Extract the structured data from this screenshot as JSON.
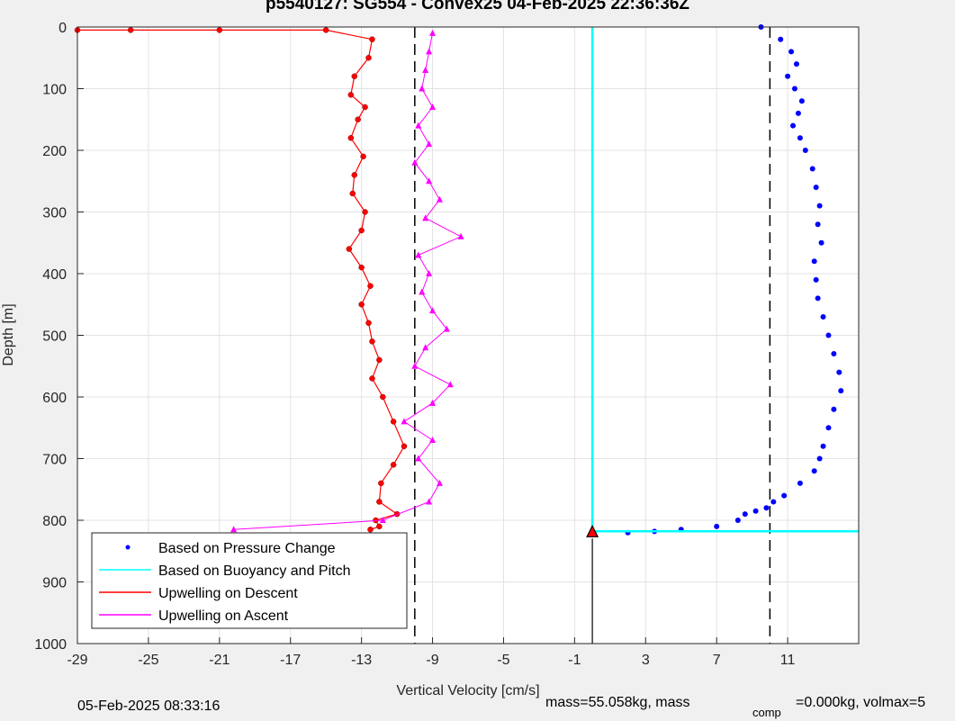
{
  "chart_data": {
    "type": "scatter",
    "title": "p5540127: SG554 - Convex25 04-Feb-2025 22:36:36Z",
    "xlabel": "Vertical Velocity [cm/s]",
    "ylabel": "Depth [m]",
    "xlim": [
      -29,
      15
    ],
    "ylim": [
      0,
      1000
    ],
    "y_reversed": true,
    "xticks": [
      "-29",
      "-25",
      "-21",
      "-17",
      "-13",
      "-9",
      "-5",
      "-1",
      "3",
      "7",
      "11"
    ],
    "yticks": [
      "0",
      "100",
      "200",
      "300",
      "400",
      "500",
      "600",
      "700",
      "800",
      "900",
      "1000"
    ],
    "grid": true,
    "legend_location": "bottom-left",
    "series": [
      {
        "name": "Based on Pressure Change",
        "color": "#0000ff",
        "marker": "dot",
        "x": [
          9.5,
          10.6,
          11.2,
          11.5,
          11.0,
          11.4,
          11.8,
          11.6,
          11.3,
          11.7,
          12.0,
          12.4,
          12.6,
          12.8,
          12.7,
          12.9,
          12.5,
          12.6,
          12.7,
          13.0,
          13.3,
          13.6,
          13.9,
          14.0,
          13.6,
          13.3,
          13.0,
          12.8,
          12.5,
          11.7,
          10.8,
          10.2,
          9.8,
          9.2,
          8.6,
          8.2,
          7.0,
          5.0,
          3.5,
          2.0
        ],
        "y": [
          0,
          20,
          40,
          60,
          80,
          100,
          120,
          140,
          160,
          180,
          200,
          230,
          260,
          290,
          320,
          350,
          380,
          410,
          440,
          470,
          500,
          530,
          560,
          590,
          620,
          650,
          680,
          700,
          720,
          740,
          760,
          770,
          780,
          785,
          790,
          800,
          810,
          815,
          818,
          820
        ]
      },
      {
        "name": "Based on Buoyancy and Pitch",
        "color": "#00ffff",
        "marker": "line",
        "x": [
          0.0,
          0.0,
          0.0,
          15.0
        ],
        "y": [
          0,
          410,
          818,
          818
        ]
      },
      {
        "name": "Upwelling on Descent",
        "color": "#ff0000",
        "marker": "dot-line",
        "x": [
          -29,
          -26,
          -21,
          -15,
          -12.4,
          -12.6,
          -13.4,
          -13.6,
          -12.8,
          -13.2,
          -13.6,
          -12.9,
          -13.4,
          -13.5,
          -12.8,
          -13.0,
          -13.7,
          -13.0,
          -12.5,
          -13.0,
          -12.6,
          -12.4,
          -12.0,
          -12.4,
          -11.8,
          -11.2,
          -10.6,
          -11.2,
          -11.9,
          -12.0,
          -11.0,
          -12.2,
          -12.0,
          -12.5
        ],
        "y": [
          5,
          5,
          5,
          5,
          20,
          50,
          80,
          110,
          130,
          150,
          180,
          210,
          240,
          270,
          300,
          330,
          360,
          390,
          420,
          450,
          480,
          510,
          540,
          570,
          600,
          640,
          680,
          710,
          740,
          770,
          790,
          800,
          810,
          815
        ]
      },
      {
        "name": "Upwelling on Ascent",
        "color": "#ff00ff",
        "marker": "triangle",
        "x": [
          -20.2,
          -11.8,
          -9.2,
          -8.6,
          -9.8,
          -9.0,
          -10.6,
          -9.0,
          -8.0,
          -10.0,
          -9.4,
          -8.2,
          -9.0,
          -9.6,
          -9.2,
          -9.8,
          -7.4,
          -9.4,
          -8.6,
          -9.2,
          -10.0,
          -9.2,
          -9.8,
          -9.0,
          -9.6,
          -9.4,
          -9.2,
          -9.0
        ],
        "y": [
          815,
          800,
          770,
          740,
          700,
          670,
          640,
          610,
          580,
          550,
          520,
          490,
          460,
          430,
          400,
          370,
          340,
          310,
          280,
          250,
          220,
          190,
          160,
          130,
          100,
          70,
          40,
          10
        ]
      }
    ],
    "vlines": [
      {
        "x": -10,
        "style": "dashed",
        "color": "#000000"
      },
      {
        "x": 10,
        "style": "dashed",
        "color": "#000000"
      }
    ],
    "arrow": {
      "x": 0,
      "from_depth": 1000,
      "to_depth": 818,
      "color": "#000000"
    },
    "footer": {
      "timestamp": "05-Feb-2025 08:33:16",
      "mass_main": "mass=55.058kg, mass",
      "mass_sub": "comp",
      "mass_rest": "=0.000kg, volmax=5"
    }
  }
}
